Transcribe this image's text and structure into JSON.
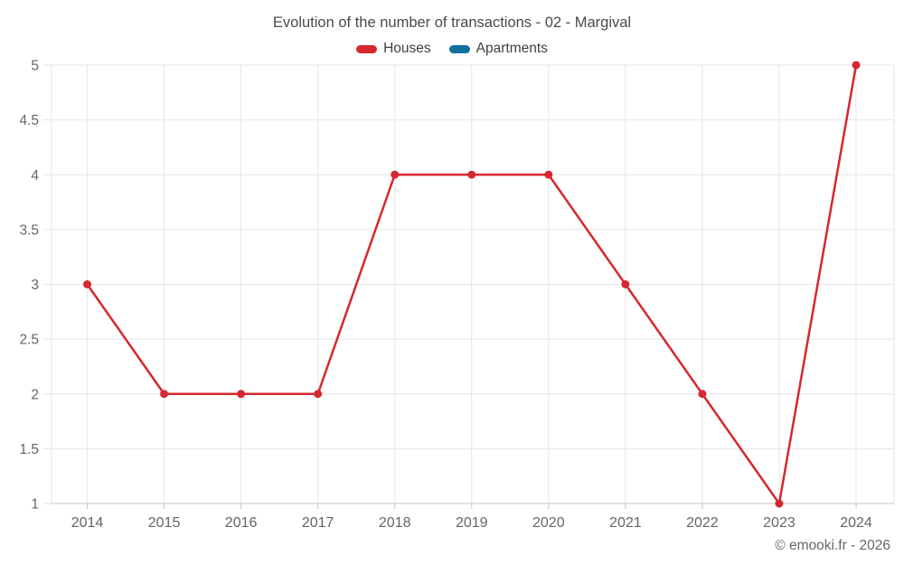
{
  "header": {
    "title": "Evolution of the number of transactions - 02 - Margival"
  },
  "legend": {
    "items": [
      {
        "label": "Houses",
        "color": "#d5282f"
      },
      {
        "label": "Apartments",
        "color": "#11709e"
      }
    ]
  },
  "chart_data": {
    "type": "line",
    "title": "Evolution of the number of transactions - 02 - Margival",
    "x": [
      "2014",
      "2015",
      "2016",
      "2017",
      "2018",
      "2019",
      "2020",
      "2021",
      "2022",
      "2023",
      "2024"
    ],
    "series": [
      {
        "name": "Houses",
        "color": "#d5282f",
        "values": [
          3,
          2,
          2,
          2,
          4,
          4,
          4,
          3,
          2,
          1,
          5
        ]
      },
      {
        "name": "Apartments",
        "color": "#11709e",
        "values": []
      }
    ],
    "ylim": [
      1,
      5
    ],
    "yticks": [
      1,
      1.5,
      2,
      2.5,
      3,
      3.5,
      4,
      4.5,
      5
    ],
    "grid": true,
    "legend_position": "top",
    "marker": "circle"
  },
  "footer": {
    "credits": "© emooki.fr - 2026"
  },
  "colors": {
    "grid": "#e6e6e6",
    "axis": "#c9c9c9",
    "label": "#666666",
    "title": "#4a4a4a"
  }
}
